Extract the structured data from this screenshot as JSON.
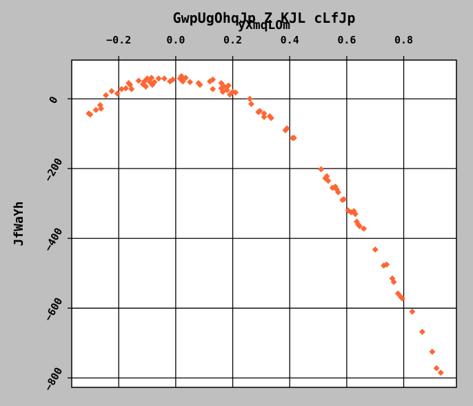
{
  "chart_data": {
    "type": "scatter",
    "title": "GwpUgOhqJp Z KJL cLfJp",
    "xlabel": "yXmqLOm",
    "ylabel": "JfWaYh",
    "xlim": [
      -0.365,
      0.985
    ],
    "ylim": [
      -827,
      111
    ],
    "x_ticks": [
      -0.2,
      0.0,
      0.2,
      0.4,
      0.6,
      0.8
    ],
    "x_tick_labels": [
      "−0.2",
      "0.0",
      "0.2",
      "0.4",
      "0.6",
      "0.8"
    ],
    "y_ticks": [
      0,
      -200,
      -400,
      -600,
      -800
    ],
    "y_tick_labels": [
      "0",
      "−200",
      "−400",
      "−600",
      "−800"
    ],
    "x_axis_position": "top",
    "grid": true,
    "marker_color": "#ff6633",
    "marker": "diamond",
    "points": [
      [
        -0.305,
        -42
      ],
      [
        -0.3,
        -45
      ],
      [
        -0.28,
        -32
      ],
      [
        -0.265,
        -18
      ],
      [
        -0.262,
        -28
      ],
      [
        -0.245,
        10
      ],
      [
        -0.225,
        22
      ],
      [
        -0.205,
        15
      ],
      [
        -0.19,
        28
      ],
      [
        -0.175,
        30
      ],
      [
        -0.165,
        45
      ],
      [
        -0.16,
        40
      ],
      [
        -0.155,
        28
      ],
      [
        -0.13,
        52
      ],
      [
        -0.115,
        42
      ],
      [
        -0.11,
        50
      ],
      [
        -0.105,
        35
      ],
      [
        -0.1,
        58
      ],
      [
        -0.09,
        48
      ],
      [
        -0.085,
        60
      ],
      [
        -0.082,
        40
      ],
      [
        -0.075,
        48
      ],
      [
        -0.06,
        58
      ],
      [
        -0.04,
        58
      ],
      [
        -0.02,
        50
      ],
      [
        -0.01,
        55
      ],
      [
        0.015,
        58
      ],
      [
        0.02,
        65
      ],
      [
        0.025,
        50
      ],
      [
        0.035,
        60
      ],
      [
        0.05,
        48
      ],
      [
        0.08,
        45
      ],
      [
        0.085,
        40
      ],
      [
        0.12,
        50
      ],
      [
        0.13,
        55
      ],
      [
        0.13,
        28
      ],
      [
        0.16,
        45
      ],
      [
        0.16,
        30
      ],
      [
        0.165,
        20
      ],
      [
        0.17,
        35
      ],
      [
        0.18,
        25
      ],
      [
        0.185,
        38
      ],
      [
        0.19,
        12
      ],
      [
        0.2,
        20
      ],
      [
        0.21,
        18
      ],
      [
        0.26,
        0
      ],
      [
        0.265,
        -15
      ],
      [
        0.29,
        -38
      ],
      [
        0.295,
        -35
      ],
      [
        0.31,
        -42
      ],
      [
        0.31,
        -52
      ],
      [
        0.33,
        -50
      ],
      [
        0.335,
        -55
      ],
      [
        0.385,
        -90
      ],
      [
        0.39,
        -85
      ],
      [
        0.41,
        -112
      ],
      [
        0.415,
        -112
      ],
      [
        0.51,
        -202
      ],
      [
        0.525,
        -228
      ],
      [
        0.53,
        -222
      ],
      [
        0.535,
        -235
      ],
      [
        0.55,
        -255
      ],
      [
        0.56,
        -252
      ],
      [
        0.565,
        -260
      ],
      [
        0.57,
        -268
      ],
      [
        0.585,
        -290
      ],
      [
        0.59,
        -288
      ],
      [
        0.605,
        -320
      ],
      [
        0.615,
        -325
      ],
      [
        0.625,
        -322
      ],
      [
        0.63,
        -330
      ],
      [
        0.635,
        -352
      ],
      [
        0.64,
        -360
      ],
      [
        0.645,
        -365
      ],
      [
        0.66,
        -372
      ],
      [
        0.7,
        -432
      ],
      [
        0.73,
        -478
      ],
      [
        0.74,
        -475
      ],
      [
        0.76,
        -515
      ],
      [
        0.765,
        -525
      ],
      [
        0.78,
        -558
      ],
      [
        0.79,
        -568
      ],
      [
        0.795,
        -572
      ],
      [
        0.83,
        -610
      ],
      [
        0.865,
        -668
      ],
      [
        0.9,
        -725
      ],
      [
        0.915,
        -772
      ],
      [
        0.93,
        -785
      ]
    ]
  }
}
